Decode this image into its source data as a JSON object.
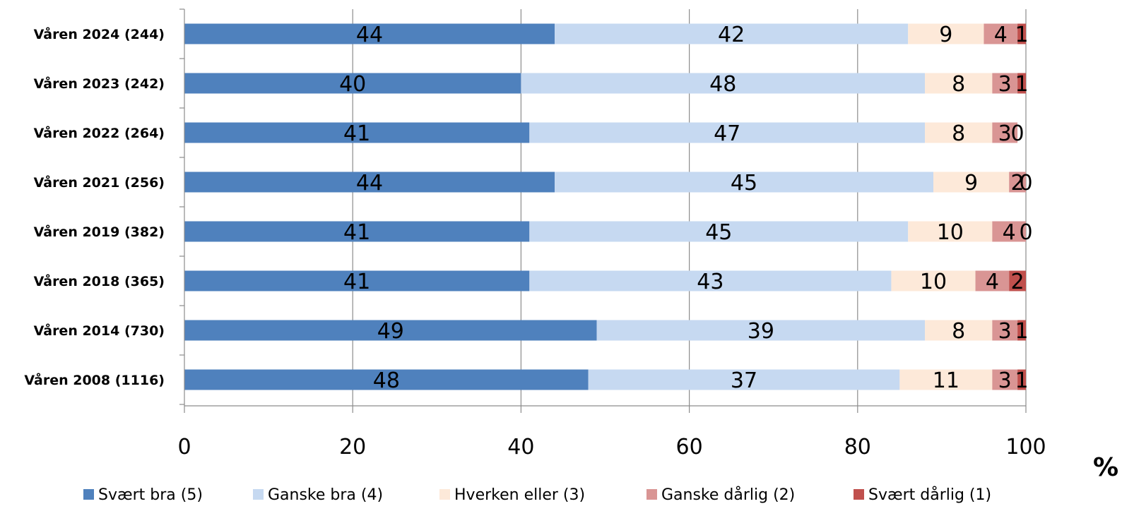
{
  "chart_data": {
    "type": "bar",
    "orientation": "horizontal",
    "stacked": true,
    "categories": [
      "Våren 2024 (244)",
      "Våren 2023 (242)",
      "Våren 2022 (264)",
      "Våren 2021 (256)",
      "Våren 2019 (382)",
      "Våren 2018 (365)",
      "Våren 2014 (730)",
      "Våren 2008 (1116)"
    ],
    "series": [
      {
        "name": "Svært bra (5)",
        "color": "#4f81bd",
        "values": [
          44,
          40,
          41,
          44,
          41,
          41,
          49,
          48
        ]
      },
      {
        "name": "Ganske bra (4)",
        "color": "#c6d9f1",
        "values": [
          42,
          48,
          47,
          45,
          45,
          43,
          39,
          37
        ]
      },
      {
        "name": "Hverken eller (3)",
        "color": "#fde9d9",
        "values": [
          9,
          8,
          8,
          9,
          10,
          10,
          8,
          11
        ]
      },
      {
        "name": "Ganske dårlig (2)",
        "color": "#d99594",
        "values": [
          4,
          3,
          3,
          2,
          4,
          4,
          3,
          3
        ]
      },
      {
        "name": "Svært dårlig (1)",
        "color": "#c0504d",
        "values": [
          1,
          1,
          0,
          0,
          0,
          2,
          1,
          1
        ]
      }
    ],
    "x_ticks": [
      0,
      20,
      40,
      60,
      80,
      100
    ],
    "xlim": [
      0,
      100
    ],
    "x_unit": "%",
    "grid": true,
    "legend_position": "bottom",
    "data_labels": true
  }
}
